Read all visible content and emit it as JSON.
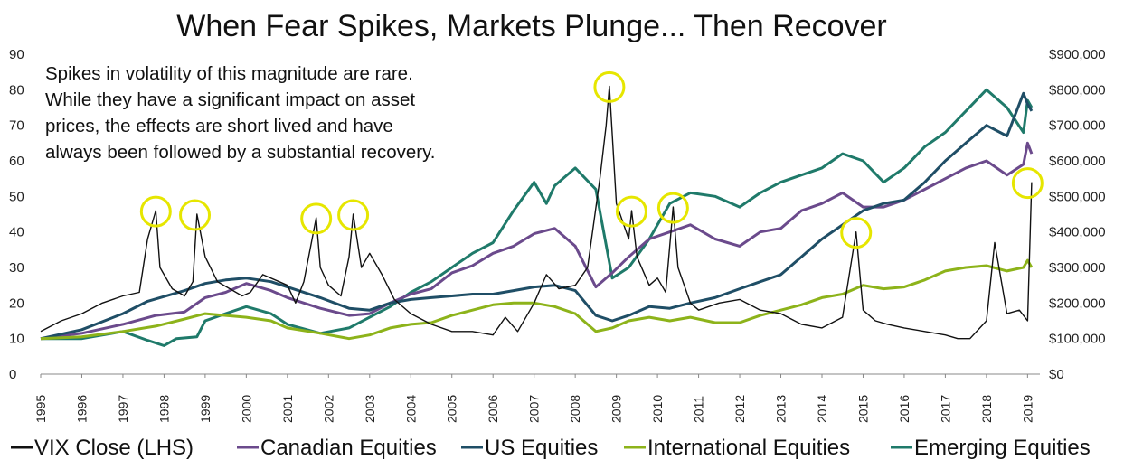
{
  "chart_data": {
    "type": "line",
    "title": "When Fear Spikes, Markets Plunge... Then Recover",
    "annotation": [
      "Spikes in volatility of this magnitude are rare.",
      "While they have a significant impact on asset",
      "prices, the effects are short lived and have",
      "always been followed by a substantial recovery."
    ],
    "x_ticks": [
      "1995",
      "1996",
      "1997",
      "1998",
      "1999",
      "2000",
      "2001",
      "2002",
      "2003",
      "2004",
      "2005",
      "2006",
      "2007",
      "2008",
      "2009",
      "2010",
      "2011",
      "2012",
      "2013",
      "2014",
      "2015",
      "2016",
      "2017",
      "2018",
      "2019"
    ],
    "y_left": {
      "range": [
        0,
        90
      ],
      "ticks": [
        "0",
        "10",
        "20",
        "30",
        "40",
        "50",
        "60",
        "70",
        "80",
        "90"
      ]
    },
    "y_right": {
      "range": [
        0,
        900000
      ],
      "ticks": [
        "$0",
        "$100,000",
        "$200,000",
        "$300,000",
        "$400,000",
        "$500,000",
        "$600,000",
        "$700,000",
        "$800,000",
        "$900,000"
      ]
    },
    "grid": false,
    "legend_position": "bottom",
    "highlighted_spikes": [
      {
        "x": 1997.8,
        "y": 46
      },
      {
        "x": 1998.75,
        "y": 45
      },
      {
        "x": 2001.7,
        "y": 44
      },
      {
        "x": 2002.6,
        "y": 45
      },
      {
        "x": 2008.83,
        "y": 81
      },
      {
        "x": 2009.37,
        "y": 46
      },
      {
        "x": 2010.38,
        "y": 47
      },
      {
        "x": 2014.83,
        "y": 40
      },
      {
        "x": 2019.0,
        "y": 54
      }
    ],
    "series": [
      {
        "name": "VIX Close (LHS)",
        "axis": "left",
        "color": "#111111",
        "x": [
          1995,
          1995.5,
          1996,
          1996.5,
          1997,
          1997.4,
          1997.6,
          1997.8,
          1997.9,
          1998.2,
          1998.5,
          1998.7,
          1998.8,
          1999,
          1999.3,
          1999.6,
          1999.9,
          2000.1,
          2000.4,
          2000.8,
          2001,
          2001.2,
          2001.4,
          2001.7,
          2001.8,
          2002,
          2002.3,
          2002.5,
          2002.6,
          2002.8,
          2003,
          2003.3,
          2003.6,
          2004,
          2004.5,
          2005,
          2005.5,
          2006,
          2006.3,
          2006.6,
          2007,
          2007.3,
          2007.6,
          2008,
          2008.3,
          2008.6,
          2008.75,
          2008.83,
          2009,
          2009.3,
          2009.37,
          2009.5,
          2009.8,
          2010,
          2010.2,
          2010.38,
          2010.5,
          2010.8,
          2011,
          2011.5,
          2012,
          2012.5,
          2013,
          2013.5,
          2014,
          2014.5,
          2014.83,
          2015,
          2015.3,
          2015.6,
          2016,
          2016.5,
          2017,
          2017.3,
          2017.6,
          2018,
          2018.2,
          2018.5,
          2018.8,
          2019,
          2019.1
        ],
        "values": [
          12,
          15,
          17,
          20,
          22,
          23,
          38,
          46,
          30,
          24,
          22,
          26,
          45,
          33,
          26,
          24,
          22,
          23,
          28,
          26,
          25,
          20,
          26,
          44,
          30,
          25,
          22,
          33,
          45,
          30,
          34,
          28,
          21,
          17,
          14,
          12,
          12,
          11,
          16,
          12,
          20,
          28,
          24,
          25,
          30,
          55,
          70,
          81,
          48,
          38,
          46,
          33,
          25,
          27,
          23,
          47,
          30,
          20,
          18,
          20,
          21,
          18,
          17,
          14,
          13,
          16,
          40,
          18,
          15,
          14,
          13,
          12,
          11,
          10,
          10,
          15,
          37,
          17,
          18,
          15,
          54
        ]
      },
      {
        "name": "Canadian Equities",
        "axis": "right",
        "color": "#6b4a8c",
        "x": [
          1995,
          1996,
          1997,
          1997.8,
          1998.5,
          1999,
          1999.5,
          2000,
          2000.6,
          2001,
          2001.8,
          2002.5,
          2003,
          2003.5,
          2004,
          2004.5,
          2005,
          2005.5,
          2006,
          2006.5,
          2007,
          2007.5,
          2008,
          2008.5,
          2008.9,
          2009.3,
          2009.8,
          2010.3,
          2010.8,
          2011.4,
          2012,
          2012.5,
          2013,
          2013.5,
          2014,
          2014.5,
          2015,
          2015.5,
          2016,
          2016.5,
          2017,
          2017.5,
          2018,
          2018.5,
          2018.9,
          2019,
          2019.1
        ],
        "values": [
          100000,
          115000,
          140000,
          165000,
          175000,
          215000,
          230000,
          255000,
          235000,
          215000,
          185000,
          165000,
          170000,
          200000,
          225000,
          240000,
          285000,
          305000,
          340000,
          360000,
          395000,
          410000,
          360000,
          245000,
          285000,
          330000,
          380000,
          400000,
          420000,
          380000,
          360000,
          400000,
          410000,
          460000,
          480000,
          510000,
          470000,
          470000,
          490000,
          520000,
          550000,
          580000,
          600000,
          560000,
          590000,
          650000,
          620000
        ]
      },
      {
        "name": "US Equities",
        "axis": "right",
        "color": "#1f4e66",
        "x": [
          1995,
          1996,
          1997,
          1997.6,
          1998.5,
          1999,
          1999.5,
          2000,
          2000.6,
          2001,
          2001.8,
          2002.5,
          2003,
          2003.5,
          2004,
          2004.5,
          2005,
          2005.5,
          2006,
          2006.5,
          2007,
          2007.5,
          2008,
          2008.5,
          2008.9,
          2009.3,
          2009.8,
          2010.3,
          2010.8,
          2011.4,
          2012,
          2012.5,
          2013,
          2013.5,
          2014,
          2014.5,
          2015,
          2015.5,
          2016,
          2016.5,
          2017,
          2017.5,
          2018,
          2018.5,
          2018.9,
          2019,
          2019.1
        ],
        "values": [
          100000,
          125000,
          170000,
          205000,
          235000,
          255000,
          265000,
          270000,
          260000,
          245000,
          215000,
          185000,
          180000,
          200000,
          210000,
          215000,
          220000,
          225000,
          225000,
          235000,
          245000,
          250000,
          235000,
          165000,
          150000,
          165000,
          190000,
          185000,
          200000,
          215000,
          240000,
          260000,
          280000,
          330000,
          380000,
          420000,
          460000,
          480000,
          490000,
          540000,
          600000,
          650000,
          700000,
          670000,
          790000,
          760000,
          740000
        ]
      },
      {
        "name": "International Equities",
        "axis": "right",
        "color": "#8db31a",
        "x": [
          1995,
          1996,
          1997,
          1997.8,
          1998.5,
          1999,
          1999.5,
          2000,
          2000.6,
          2001,
          2001.8,
          2002.5,
          2003,
          2003.5,
          2004,
          2004.5,
          2005,
          2005.5,
          2006,
          2006.5,
          2007,
          2007.5,
          2008,
          2008.5,
          2008.9,
          2009.3,
          2009.8,
          2010.3,
          2010.8,
          2011.4,
          2012,
          2012.5,
          2013,
          2013.5,
          2014,
          2014.5,
          2015,
          2015.5,
          2016,
          2016.5,
          2017,
          2017.5,
          2018,
          2018.5,
          2018.9,
          2019,
          2019.1
        ],
        "values": [
          100000,
          105000,
          120000,
          135000,
          155000,
          170000,
          165000,
          160000,
          150000,
          130000,
          115000,
          100000,
          110000,
          130000,
          140000,
          145000,
          165000,
          180000,
          195000,
          200000,
          200000,
          190000,
          170000,
          120000,
          130000,
          150000,
          160000,
          150000,
          160000,
          145000,
          145000,
          165000,
          180000,
          195000,
          215000,
          225000,
          250000,
          240000,
          245000,
          265000,
          290000,
          300000,
          305000,
          290000,
          300000,
          320000,
          300000
        ]
      },
      {
        "name": "Emerging Equities",
        "axis": "right",
        "color": "#1f7a6a",
        "x": [
          1995,
          1996,
          1997,
          1997.6,
          1998,
          1998.3,
          1998.8,
          1999,
          1999.5,
          2000,
          2000.6,
          2001,
          2001.8,
          2002.5,
          2003,
          2003.5,
          2004,
          2004.5,
          2005,
          2005.5,
          2006,
          2006.5,
          2007,
          2007.3,
          2007.5,
          2008,
          2008.5,
          2008.9,
          2009.3,
          2009.8,
          2010.3,
          2010.8,
          2011.4,
          2012,
          2012.5,
          2013,
          2013.5,
          2014,
          2014.5,
          2015,
          2015.5,
          2016,
          2016.5,
          2017,
          2017.5,
          2018,
          2018.5,
          2018.9,
          2019,
          2019.1
        ],
        "values": [
          100000,
          100000,
          120000,
          95000,
          80000,
          100000,
          105000,
          150000,
          170000,
          190000,
          170000,
          140000,
          115000,
          130000,
          160000,
          190000,
          230000,
          260000,
          300000,
          340000,
          370000,
          460000,
          540000,
          480000,
          530000,
          580000,
          520000,
          270000,
          300000,
          380000,
          480000,
          510000,
          500000,
          470000,
          510000,
          540000,
          560000,
          580000,
          620000,
          600000,
          540000,
          580000,
          640000,
          680000,
          740000,
          800000,
          750000,
          680000,
          770000,
          750000
        ]
      }
    ],
    "legend": [
      "VIX Close (LHS)",
      "Canadian Equities",
      "US Equities",
      "International Equities",
      "Emerging Equities"
    ]
  }
}
